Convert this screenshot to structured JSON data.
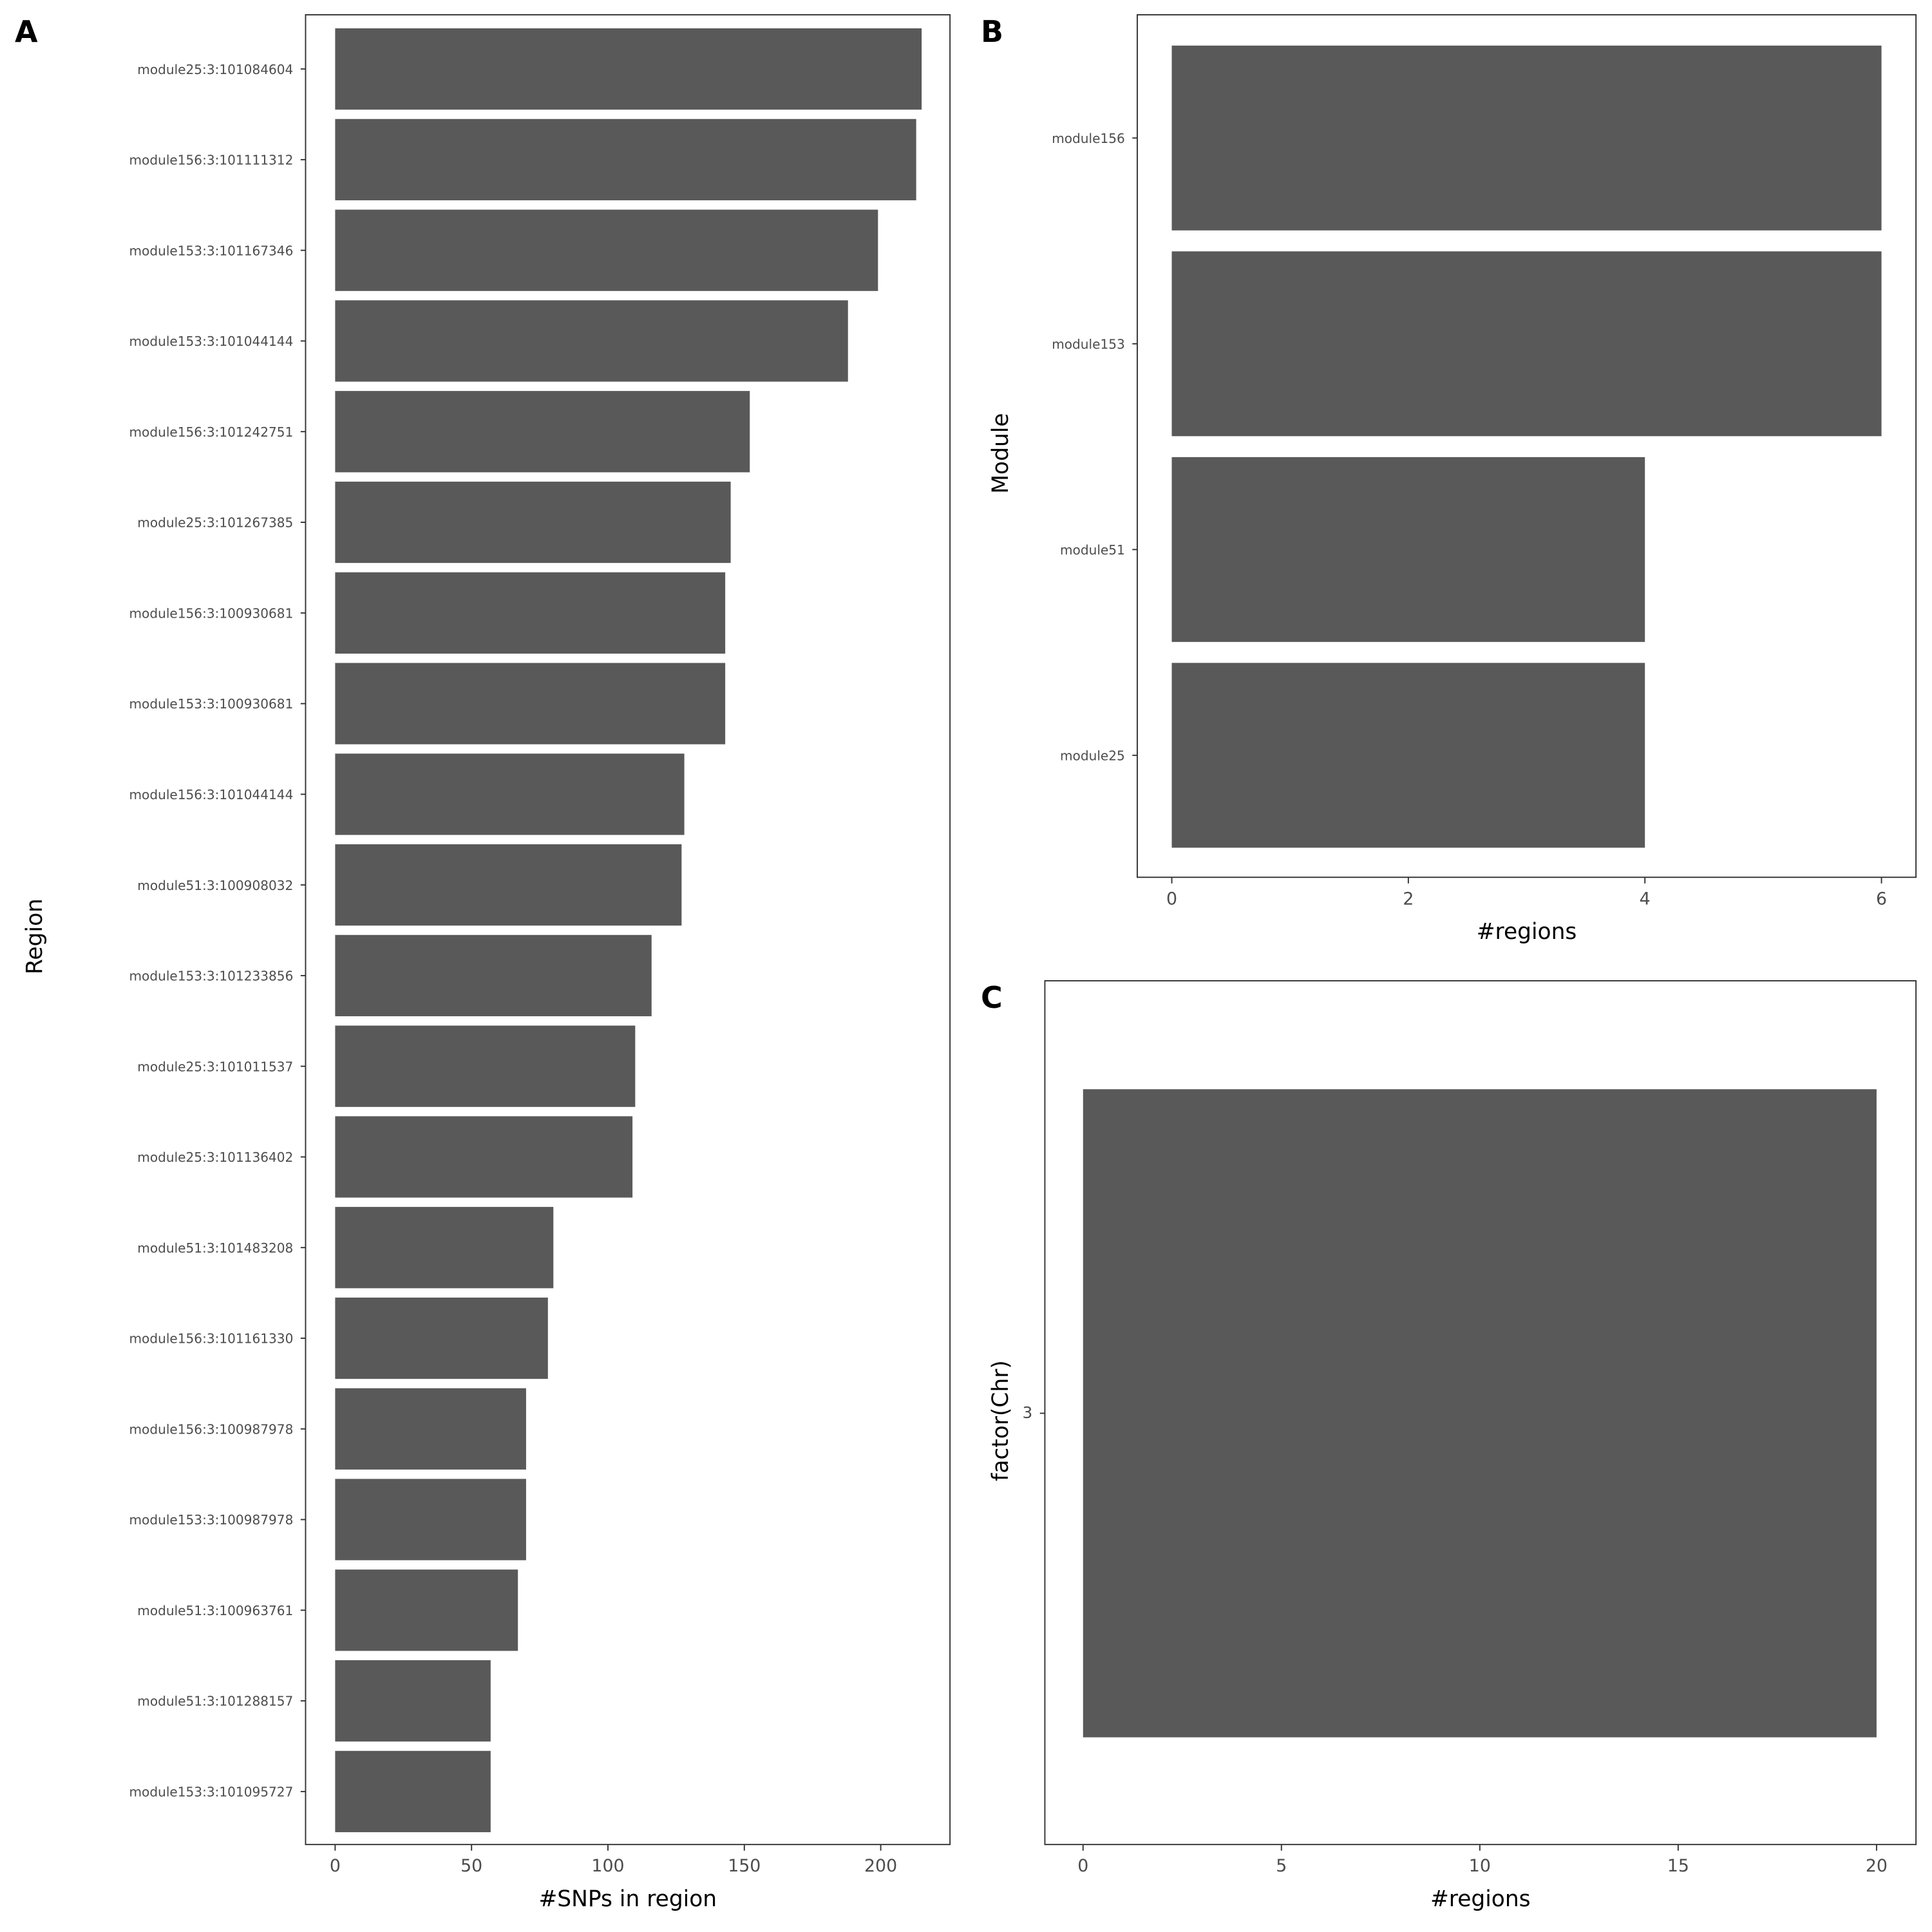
{
  "chart_data": [
    {
      "panel": "A",
      "type": "bar",
      "orientation": "horizontal",
      "xlabel": "#SNPs in region",
      "ylabel": "Region",
      "xlim": [
        0,
        225
      ],
      "xticks": [
        0,
        50,
        100,
        150,
        200
      ],
      "grid": false,
      "bar_color": "#595959",
      "categories": [
        "module25:3:101084604",
        "module156:3:101111312",
        "module153:3:101167346",
        "module153:3:101044144",
        "module156:3:101242751",
        "module25:3:101267385",
        "module156:3:100930681",
        "module153:3:100930681",
        "module156:3:101044144",
        "module51:3:100908032",
        "module153:3:101233856",
        "module25:3:101011537",
        "module25:3:101136402",
        "module51:3:101483208",
        "module156:3:101161330",
        "module156:3:100987978",
        "module153:3:100987978",
        "module51:3:100963761",
        "module51:3:101288157",
        "module153:3:101095727"
      ],
      "values": [
        215,
        213,
        199,
        188,
        152,
        145,
        143,
        143,
        128,
        127,
        116,
        110,
        109,
        80,
        78,
        70,
        70,
        67,
        57,
        57
      ]
    },
    {
      "panel": "B",
      "type": "bar",
      "orientation": "horizontal",
      "xlabel": "#regions",
      "ylabel": "Module",
      "xlim": [
        0,
        6.3
      ],
      "xticks": [
        0,
        2,
        4,
        6
      ],
      "grid": false,
      "bar_color": "#595959",
      "categories": [
        "module156",
        "module153",
        "module51",
        "module25"
      ],
      "values": [
        6,
        6,
        4,
        4
      ]
    },
    {
      "panel": "C",
      "type": "bar",
      "orientation": "horizontal",
      "xlabel": "#regions",
      "ylabel": "factor(Chr)",
      "xlim": [
        0,
        21
      ],
      "xticks": [
        0,
        5,
        10,
        15,
        20
      ],
      "grid": false,
      "bar_color": "#595959",
      "categories": [
        "3"
      ],
      "values": [
        20
      ]
    }
  ]
}
